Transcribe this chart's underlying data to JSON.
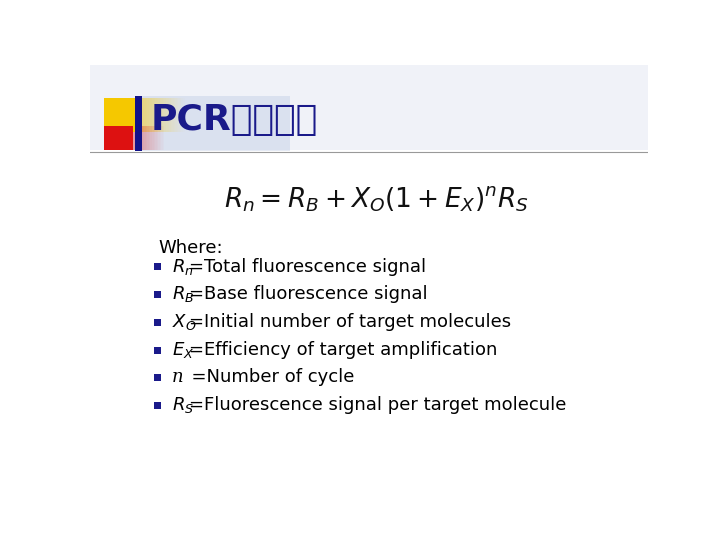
{
  "title_pcr": "PCR",
  "title_chinese": "理论方程",
  "title_color": "#1a1a8a",
  "title_fontsize": 26,
  "bg_color": "#ffffff",
  "where_label": "Where:",
  "bullet_items": [
    "R_n=Total fluorescence signal",
    "R_B=Base fluorescence signal",
    "X_O=Initial number of target molecules",
    "E_X=Efficiency of target amplification",
    "n  =Number of cycle",
    "R_S=Fluorescence signal per target molecule"
  ],
  "bullet_color": "#1a1a8a",
  "text_color": "#000000",
  "accent_yellow": "#f5c800",
  "accent_red": "#dd1111",
  "accent_blue_dark": "#111188",
  "accent_blue_light": "#aabbdd",
  "line_color": "#999999",
  "equation_color": "#111111"
}
